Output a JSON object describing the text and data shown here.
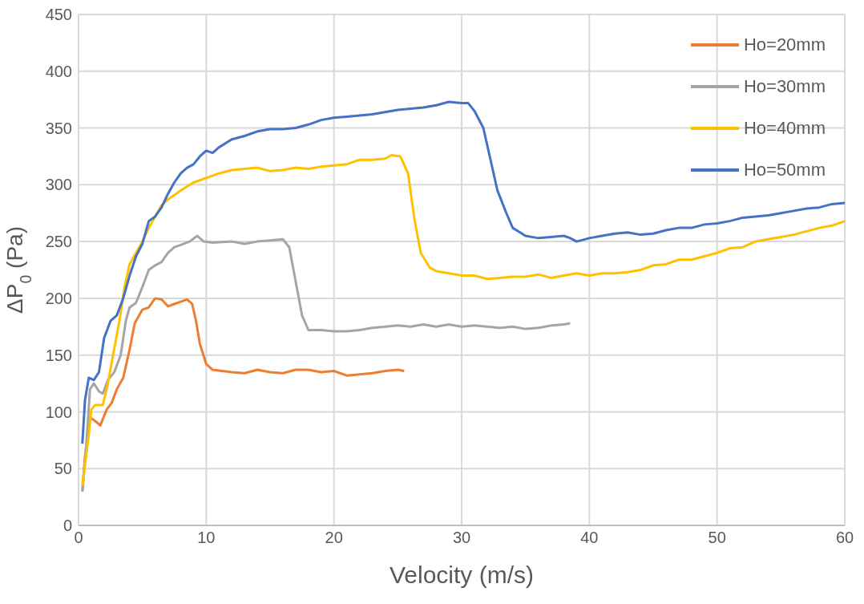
{
  "chart_data": {
    "type": "line",
    "xlabel": "Velocity (m/s)",
    "ylabel": "ΔP$_{0}$ (Pa)",
    "xlim": [
      0,
      60
    ],
    "xticks": [
      0,
      10,
      20,
      30,
      40,
      50,
      60
    ],
    "ylim": [
      0,
      450
    ],
    "yticks": [
      0,
      50,
      100,
      150,
      200,
      250,
      300,
      350,
      400,
      450
    ],
    "grid": true,
    "legend": "top right",
    "marker": "none",
    "line_style": "solid",
    "series": [
      {
        "name": "Ho=20mm",
        "color": "#ed7d31",
        "x": [
          0.3,
          0.5,
          0.9,
          1.3,
          1.7,
          2.2,
          2.6,
          3.0,
          3.5,
          4.0,
          4.4,
          5.0,
          5.5,
          6.0,
          6.5,
          7.0,
          7.5,
          8.0,
          8.5,
          8.9,
          9.2,
          9.5,
          10.0,
          10.5,
          12,
          13,
          14,
          15,
          16,
          17,
          18,
          19,
          20,
          21,
          22,
          23,
          24,
          25,
          25.5
        ],
        "values": [
          30,
          60,
          95,
          92,
          88,
          102,
          108,
          120,
          130,
          155,
          178,
          190,
          192,
          200,
          199,
          193,
          195,
          197,
          199,
          195,
          180,
          160,
          142,
          137,
          135,
          134,
          137,
          135,
          134,
          137,
          137,
          135,
          136,
          132,
          133,
          134,
          136,
          137,
          136
        ]
      },
      {
        "name": "Ho=30mm",
        "color": "#a5a5a5",
        "x": [
          0.3,
          0.6,
          0.9,
          1.2,
          1.6,
          1.9,
          2.3,
          2.8,
          3.3,
          3.7,
          4.0,
          4.5,
          5.0,
          5.5,
          6.0,
          6.5,
          7.0,
          7.5,
          8.0,
          8.7,
          9.3,
          9.8,
          10.5,
          12,
          13,
          14,
          15,
          16,
          16.5,
          17,
          17.5,
          18,
          19,
          20,
          21,
          22,
          23,
          24,
          25,
          26,
          27,
          28,
          29,
          30,
          31,
          32,
          33,
          34,
          35,
          36,
          37,
          38,
          38.5
        ],
        "values": [
          30,
          70,
          120,
          125,
          118,
          116,
          128,
          135,
          150,
          180,
          192,
          196,
          210,
          225,
          229,
          232,
          240,
          245,
          247,
          250,
          255,
          250,
          249,
          250,
          248,
          250,
          251,
          252,
          245,
          215,
          185,
          172,
          172,
          171,
          171,
          172,
          174,
          175,
          176,
          175,
          177,
          175,
          177,
          175,
          176,
          175,
          174,
          175,
          173,
          174,
          176,
          177,
          178
        ]
      },
      {
        "name": "Ho=40mm",
        "color": "#ffc000",
        "x": [
          0.3,
          0.8,
          1.0,
          1.3,
          1.9,
          2.3,
          2.7,
          3.2,
          3.6,
          4.0,
          4.5,
          5.0,
          5.5,
          6.0,
          6.5,
          7.0,
          8.0,
          9.0,
          10,
          11,
          12,
          13,
          14,
          15,
          16,
          17,
          18,
          19,
          20,
          21,
          22,
          23,
          24,
          24.5,
          25.2,
          25.8,
          26.3,
          26.8,
          27.5,
          28,
          29,
          30,
          31,
          32,
          33,
          34,
          35,
          36,
          37,
          38,
          39,
          40,
          41,
          42,
          43,
          44,
          45,
          46,
          47,
          48,
          49,
          50,
          51,
          52,
          53,
          54,
          55,
          56,
          57,
          58,
          59,
          60
        ],
        "values": [
          35,
          80,
          102,
          106,
          106,
          125,
          150,
          180,
          210,
          230,
          240,
          250,
          262,
          272,
          282,
          287,
          295,
          302,
          306,
          310,
          313,
          314,
          315,
          312,
          313,
          315,
          314,
          316,
          317,
          318,
          322,
          322,
          323,
          326,
          325,
          310,
          270,
          240,
          227,
          224,
          222,
          220,
          220,
          217,
          218,
          219,
          219,
          221,
          218,
          220,
          222,
          220,
          222,
          222,
          223,
          225,
          229,
          230,
          234,
          234,
          237,
          240,
          244,
          245,
          250,
          252,
          254,
          256,
          259,
          262,
          264,
          268
        ]
      },
      {
        "name": "Ho=50mm",
        "color": "#4472c4",
        "x": [
          0.3,
          0.5,
          0.8,
          1.2,
          1.6,
          2.0,
          2.5,
          3.0,
          3.5,
          4.0,
          4.5,
          5.0,
          5.5,
          6.0,
          6.5,
          7.0,
          7.5,
          8.0,
          8.5,
          9.0,
          9.5,
          10,
          10.5,
          11,
          12,
          13,
          14,
          15,
          16,
          17,
          18,
          19,
          20,
          21,
          22,
          23,
          24,
          25,
          26,
          27,
          28,
          29,
          30,
          30.5,
          31,
          31.7,
          32.3,
          32.8,
          33.5,
          34,
          35,
          36,
          37,
          38,
          38.5,
          39,
          40,
          41,
          42,
          43,
          44,
          45,
          46,
          47,
          48,
          49,
          50,
          51,
          52,
          53,
          54,
          55,
          56,
          57,
          58,
          59,
          60
        ],
        "values": [
          72,
          110,
          130,
          128,
          135,
          165,
          180,
          185,
          200,
          220,
          237,
          248,
          268,
          272,
          280,
          292,
          302,
          310,
          315,
          318,
          325,
          330,
          328,
          333,
          340,
          343,
          347,
          349,
          349,
          350,
          353,
          357,
          359,
          360,
          361,
          362,
          364,
          366,
          367,
          368,
          370,
          373,
          372,
          372,
          365,
          350,
          320,
          295,
          275,
          262,
          255,
          253,
          254,
          255,
          253,
          250,
          253,
          255,
          257,
          258,
          256,
          257,
          260,
          262,
          262,
          265,
          266,
          268,
          271,
          272,
          273,
          275,
          277,
          279,
          280,
          283,
          284
        ]
      }
    ]
  }
}
